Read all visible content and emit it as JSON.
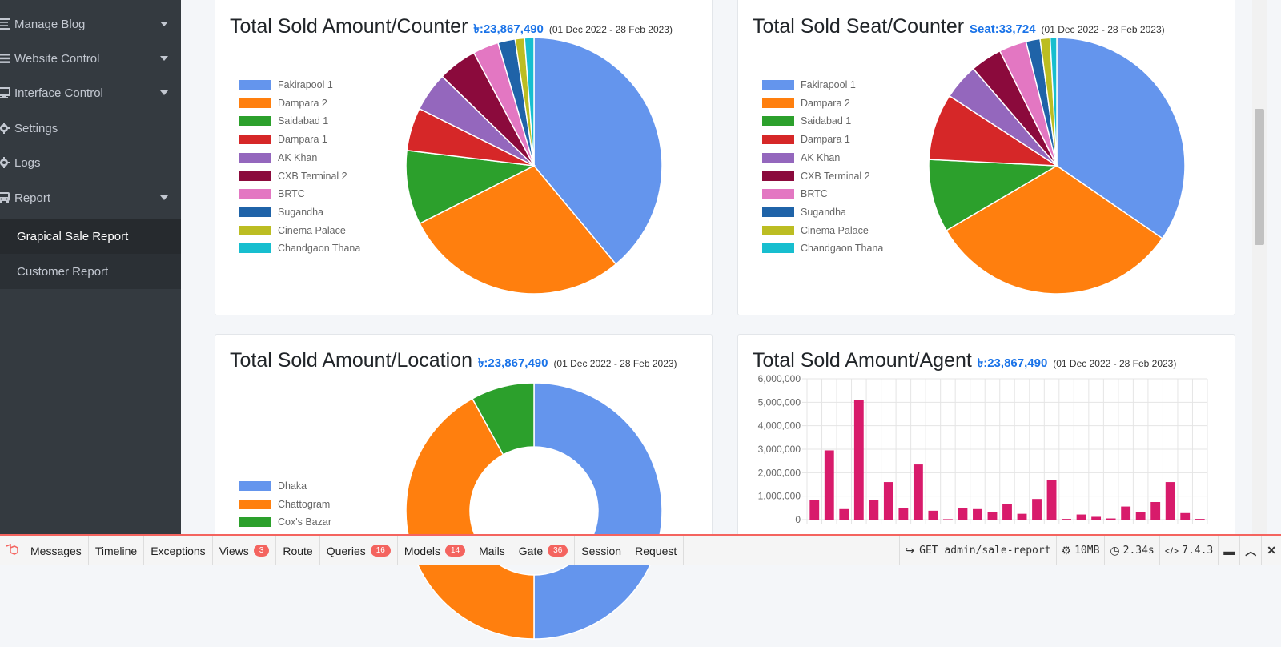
{
  "sidebar": {
    "items": [
      {
        "label": "Manage Blog",
        "icon": "list-icon"
      },
      {
        "label": "Website Control",
        "icon": "bars-icon"
      },
      {
        "label": "Interface Control",
        "icon": "monitor-icon"
      },
      {
        "label": "Settings",
        "icon": "gear-icon"
      },
      {
        "label": "Logs",
        "icon": "gear-icon"
      },
      {
        "label": "Report",
        "icon": "bus-icon"
      }
    ],
    "submenu": [
      {
        "label": "Grapical Sale Report",
        "active": true
      },
      {
        "label": "Customer Report",
        "active": false
      }
    ]
  },
  "cards": {
    "counter_amount": {
      "title": "Total Sold Amount/Counter",
      "total": "৳:23,867,490",
      "range": "(01 Dec 2022 - 28 Feb 2023)"
    },
    "counter_seat": {
      "title": "Total Sold Seat/Counter",
      "total": "Seat:33,724",
      "range": "(01 Dec 2022 - 28 Feb 2023)"
    },
    "location_amount": {
      "title": "Total Sold Amount/Location",
      "total": "৳:23,867,490",
      "range": "(01 Dec 2022 - 28 Feb 2023)"
    },
    "agent_amount": {
      "title": "Total Sold Amount/Agent",
      "total": "৳:23,867,490",
      "range": "(01 Dec 2022 - 28 Feb 2023)"
    }
  },
  "chart_data": [
    {
      "type": "pie",
      "title": "Total Sold Amount/Counter",
      "legend_position": "left",
      "categories": [
        "Fakirapool 1",
        "Dampara 2",
        "Saidabad 1",
        "Dampara 1",
        "AK Khan",
        "CXB Terminal 2",
        "BRTC",
        "Sugandha",
        "Cinema Palace",
        "Chandgaon Thana"
      ],
      "values": [
        39.5,
        29.0,
        9.5,
        5.5,
        5.0,
        5.0,
        3.3,
        2.2,
        1.2,
        1.2
      ],
      "colors": [
        "#6495ed",
        "#ff7f0e",
        "#2ca02c",
        "#d62728",
        "#9467bd",
        "#8b0a3c",
        "#e377c2",
        "#1f63a8",
        "#bcbd22",
        "#17becf"
      ]
    },
    {
      "type": "pie",
      "title": "Total Sold Seat/Counter",
      "legend_position": "left",
      "categories": [
        "Fakirapool 1",
        "Dampara 2",
        "Saidabad 1",
        "Dampara 1",
        "AK Khan",
        "CXB Terminal 2",
        "BRTC",
        "Sugandha",
        "Cinema Palace",
        "Chandgaon Thana"
      ],
      "values": [
        33.0,
        30.5,
        8.8,
        8.0,
        4.3,
        3.8,
        3.3,
        1.7,
        1.2,
        0.8
      ],
      "colors": [
        "#6495ed",
        "#ff7f0e",
        "#2ca02c",
        "#d62728",
        "#9467bd",
        "#8b0a3c",
        "#e377c2",
        "#1f63a8",
        "#bcbd22",
        "#17becf"
      ]
    },
    {
      "type": "pie",
      "title": "Total Sold Amount/Location",
      "legend_position": "left",
      "categories": [
        "Dhaka",
        "Chattogram",
        "Cox's Bazar"
      ],
      "values": [
        50,
        42,
        8
      ],
      "colors": [
        "#6495ed",
        "#ff7f0e",
        "#2ca02c"
      ]
    },
    {
      "type": "bar",
      "title": "Total Sold Amount/Agent",
      "ylim": [
        0,
        6000000
      ],
      "y_ticks": [
        "0",
        "1,000,000",
        "2,000,000",
        "3,000,000",
        "4,000,000",
        "5,000,000",
        "6,000,000"
      ],
      "values": [
        850000,
        2950000,
        450000,
        5100000,
        850000,
        1600000,
        500000,
        2350000,
        380000,
        20000,
        500000,
        450000,
        320000,
        650000,
        250000,
        880000,
        1680000,
        30000,
        220000,
        120000,
        50000,
        560000,
        320000,
        750000,
        1600000,
        280000,
        30000
      ],
      "color": "#d81b6b",
      "grid": true
    }
  ],
  "debugbar": {
    "tabs": [
      {
        "label": "Messages",
        "badge": ""
      },
      {
        "label": "Timeline",
        "badge": ""
      },
      {
        "label": "Exceptions",
        "badge": ""
      },
      {
        "label": "Views",
        "badge": "3"
      },
      {
        "label": "Route",
        "badge": ""
      },
      {
        "label": "Queries",
        "badge": "16"
      },
      {
        "label": "Models",
        "badge": "14"
      },
      {
        "label": "Mails",
        "badge": ""
      },
      {
        "label": "Gate",
        "badge": "36"
      },
      {
        "label": "Session",
        "badge": ""
      },
      {
        "label": "Request",
        "badge": ""
      }
    ],
    "request": "GET admin/sale-report",
    "memory": "10MB",
    "time": "2.34s",
    "php_version": "7.4.3"
  }
}
